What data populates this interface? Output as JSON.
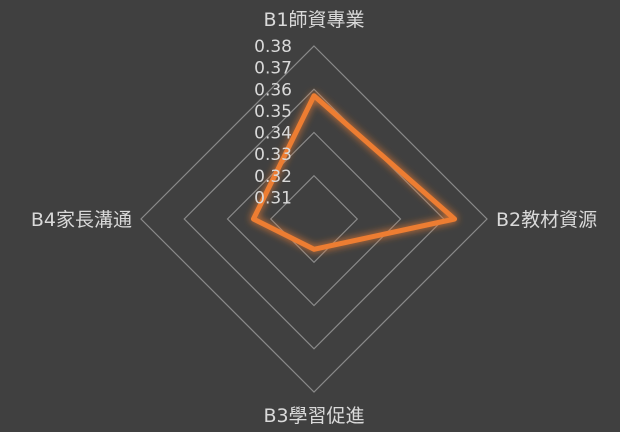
{
  "chart_data": {
    "type": "radar",
    "categories": [
      "B1師資專業",
      "B2教材資源",
      "B3學習促進",
      "B4家長溝通"
    ],
    "series": [
      {
        "values": [
          0.357,
          0.365,
          0.314,
          0.328
        ],
        "color": "#ed7d31"
      }
    ],
    "rlim": [
      0.3,
      0.38
    ],
    "ticks": [
      "0.31",
      "0.32",
      "0.33",
      "0.34",
      "0.35",
      "0.36",
      "0.37",
      "0.38"
    ],
    "tick_values": [
      0.31,
      0.32,
      0.33,
      0.34,
      0.35,
      0.36,
      0.37,
      0.38
    ],
    "grid_values": [
      0.3,
      0.32,
      0.34,
      0.36,
      0.38
    ],
    "grid": true,
    "legend": false,
    "colors": {
      "background": "#404040",
      "grid": "#8a8a8a",
      "text": "#d9d9d9",
      "series": "#ed7d31"
    }
  }
}
